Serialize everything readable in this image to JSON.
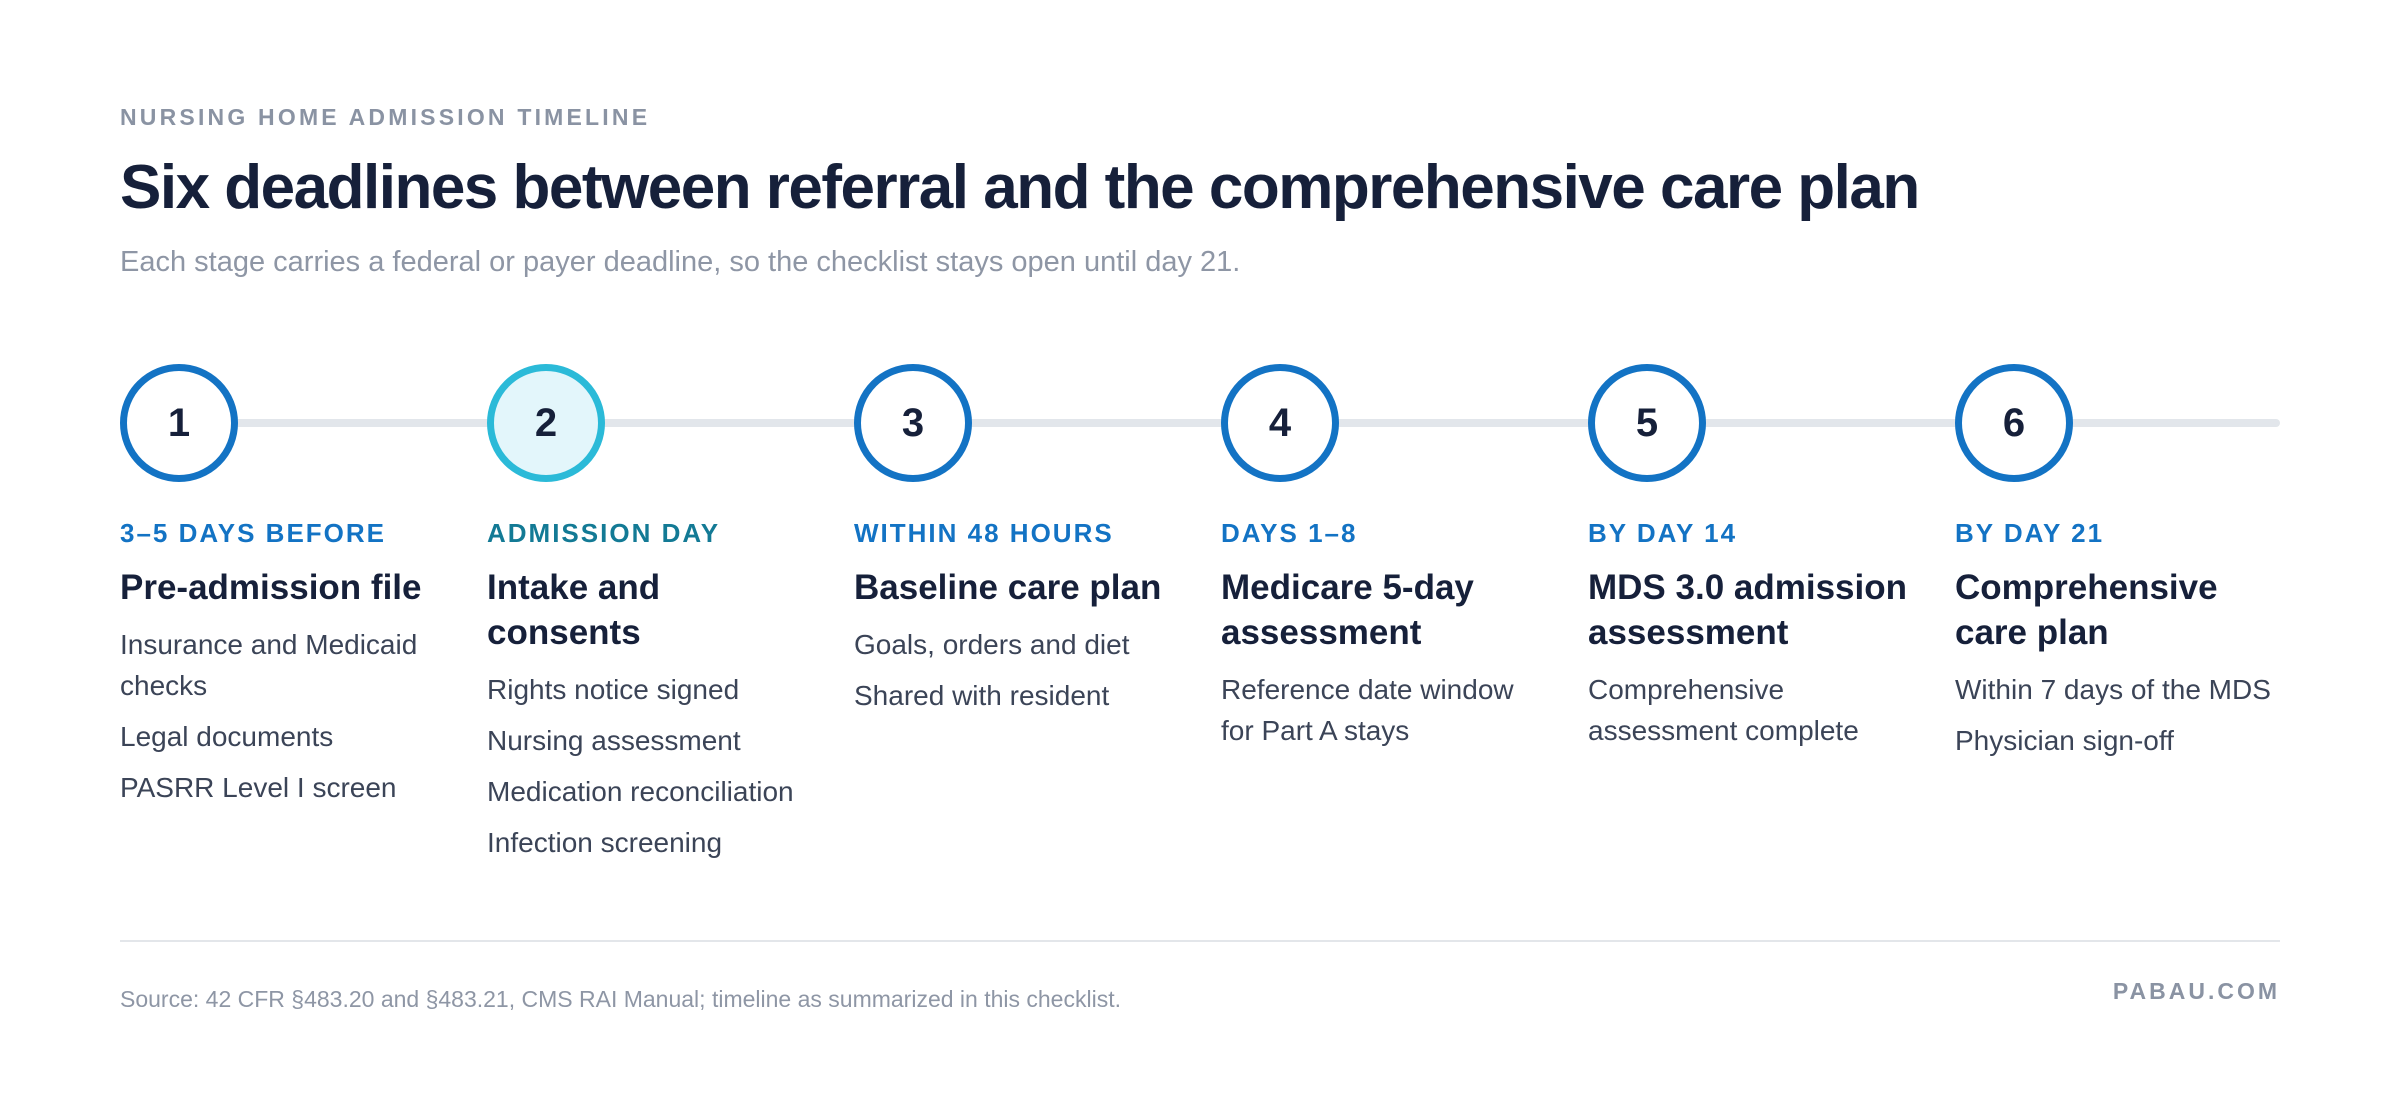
{
  "header": {
    "eyebrow": "NURSING HOME ADMISSION TIMELINE",
    "title": "Six deadlines between referral and the comprehensive care plan",
    "subtitle": "Each stage carries a federal or payer deadline, so the checklist stays open until day 21."
  },
  "colors": {
    "accent": "#1373c4",
    "active_ring": "#2bbad8",
    "active_fill": "#e3f6fb",
    "track": "#e2e6eb"
  },
  "stages": [
    {
      "number": "1",
      "label": "3–5 DAYS BEFORE",
      "title": "Pre-admission file",
      "items": [
        "Insurance and Medicaid checks",
        "Legal documents",
        "PASRR Level I screen"
      ]
    },
    {
      "number": "2",
      "label": "ADMISSION DAY",
      "title": "Intake and consents",
      "highlighted": true,
      "items": [
        "Rights notice signed",
        "Nursing assessment",
        "Medication reconciliation",
        "Infection screening"
      ]
    },
    {
      "number": "3",
      "label": "WITHIN 48 HOURS",
      "title": "Baseline care plan",
      "items": [
        "Goals, orders and diet",
        "Shared with resident"
      ]
    },
    {
      "number": "4",
      "label": "DAYS 1–8",
      "title": "Medicare 5-day assessment",
      "items": [
        "Reference date window for Part A stays"
      ]
    },
    {
      "number": "5",
      "label": "BY DAY 14",
      "title": "MDS 3.0 admission assessment",
      "items": [
        "Comprehensive assessment complete"
      ]
    },
    {
      "number": "6",
      "label": "BY DAY 21",
      "title": "Comprehensive care plan",
      "items": [
        "Within 7 days of the MDS",
        "Physician sign-off"
      ]
    }
  ],
  "footer": {
    "source": "Source: 42 CFR §483.20 and §483.21, CMS RAI Manual; timeline as summarized in this checklist.",
    "brand": "PABAU.COM"
  }
}
